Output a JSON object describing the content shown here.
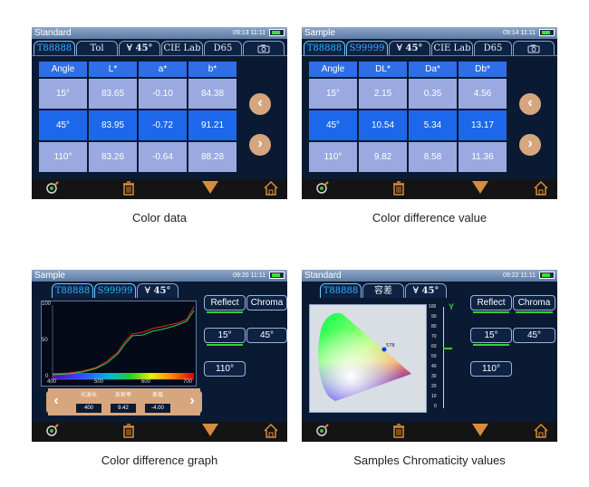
{
  "p1": {
    "title": "Standard",
    "time": "09:13 11:11",
    "tabs": [
      "T88888",
      "Tol",
      "∀ 45°",
      "CIE Lab",
      "D65",
      "camera-icon"
    ],
    "headers": [
      "Angle",
      "L*",
      "a*",
      "b*"
    ],
    "rows": [
      [
        "15°",
        "83.65",
        "-0.10",
        "84.38"
      ],
      [
        "45°",
        "83.95",
        "-0.72",
        "91.21"
      ],
      [
        "110°",
        "83.26",
        "-0.64",
        "88.28"
      ]
    ],
    "caption": "Color data"
  },
  "p2": {
    "title": "Sample",
    "time": "09:14 11:11",
    "tabs": [
      "T88888",
      "S99999",
      "∀ 45°",
      "CIE Lab",
      "D65",
      "camera-icon"
    ],
    "headers": [
      "Angle",
      "DL*",
      "Da*",
      "Db*"
    ],
    "rows": [
      [
        "15°",
        "2.15",
        "0.35",
        "4.56"
      ],
      [
        "45°",
        "10.54",
        "5.34",
        "13.17"
      ],
      [
        "110°",
        "9.82",
        "8.58",
        "11.36"
      ]
    ],
    "caption": "Color difference value"
  },
  "p3": {
    "title": "Sample",
    "time": "09:20 11:11",
    "tabs": [
      "T88888",
      "S99999",
      "∀ 45°"
    ],
    "buttons": [
      "Reflect",
      "Chroma",
      "15°",
      "45°",
      "110°"
    ],
    "yticks": [
      "100",
      "50",
      "0"
    ],
    "xticks": [
      "400",
      "500",
      "600",
      "700"
    ],
    "params": {
      "labels": [
        "光波长",
        "反射率",
        "差值"
      ],
      "values": [
        "400",
        "9.42",
        "-4.00"
      ]
    },
    "caption": "Color difference graph"
  },
  "p4": {
    "title": "Standard",
    "time": "09:22 11:11",
    "tabs": [
      "T88888",
      "容差",
      "∀ 45°"
    ],
    "buttons": [
      "Reflect",
      "Chroma",
      "15°",
      "45°",
      "110°"
    ],
    "ylabel": "Y",
    "yticks": [
      "100",
      "90",
      "80",
      "70",
      "60",
      "50",
      "40",
      "30",
      "20",
      "10",
      "0"
    ],
    "caption": "Samples Chromaticity values"
  },
  "colors": {
    "tabSelected": "#2fb3ff",
    "cellDark": "#1d68ea",
    "cellLight": "#9aa9e0",
    "nav": "#d6a67e",
    "bottomIcon": "#d78b3c"
  }
}
